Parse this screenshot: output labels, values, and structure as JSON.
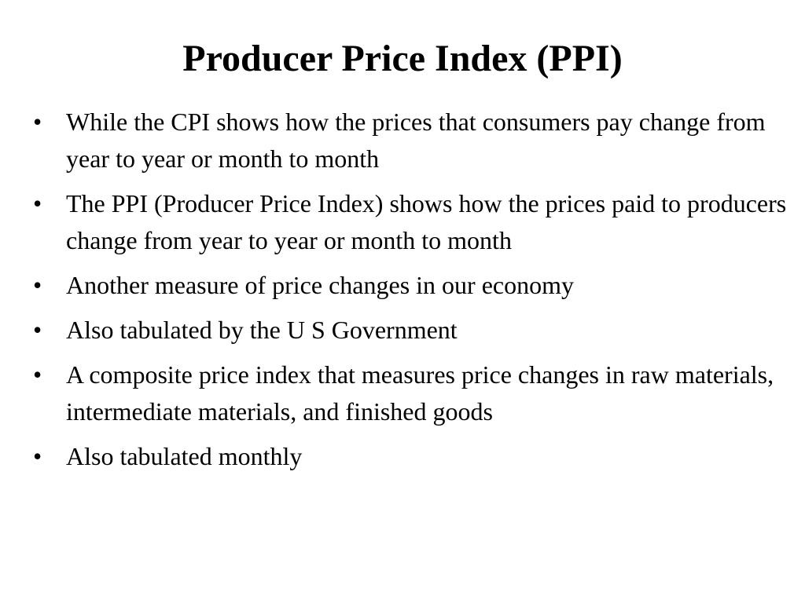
{
  "slide": {
    "title": "Producer Price Index (PPI)",
    "bullet_glyph": "•",
    "bullets": [
      "While the CPI shows how the prices that consumers pay change from year to year or month to month",
      "The PPI (Producer Price Index) shows how the prices paid to producers change from year to year or month to month",
      "Another measure of price changes in our economy",
      "Also tabulated by the U S Government",
      "A composite price index that measures price changes in raw materials, intermediate materials, and finished goods",
      "Also tabulated monthly"
    ]
  }
}
